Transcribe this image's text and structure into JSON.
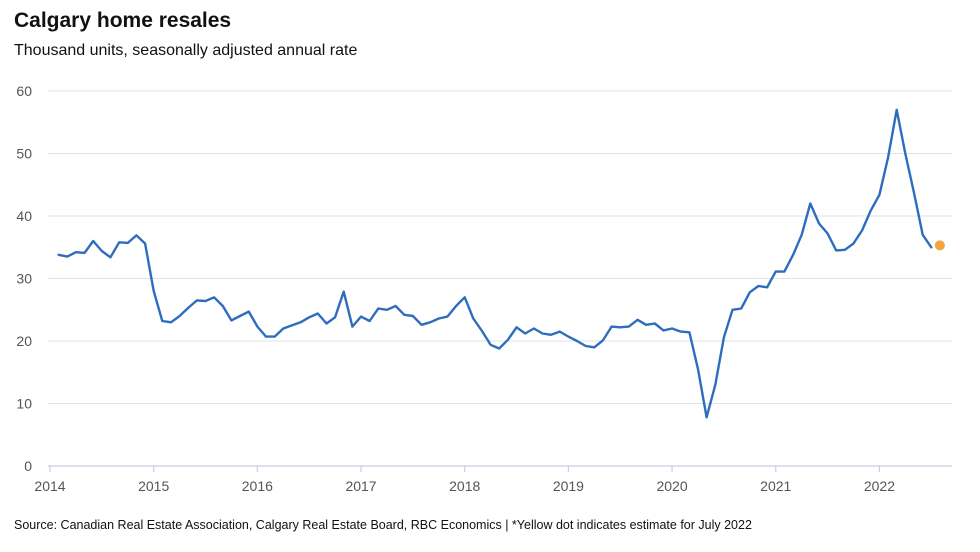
{
  "chart_data": {
    "type": "line",
    "title": "Calgary home resales",
    "subtitle": "Thousand units, seasonally adjusted annual rate",
    "source": "Source: Canadian Real Estate Association, Calgary Real Estate Board, RBC Economics | *Yellow dot indicates estimate for July 2022",
    "xlabel": "",
    "ylabel": "",
    "ylim": [
      0,
      60
    ],
    "yticks": [
      "0",
      "10",
      "20",
      "30",
      "40",
      "50",
      "60"
    ],
    "xticks": [
      "2014",
      "2015",
      "2016",
      "2017",
      "2018",
      "2019",
      "2020",
      "2021",
      "2022"
    ],
    "xlim": [
      2014.0,
      2022.7
    ],
    "grid": true,
    "line_color": "#2e6dbe",
    "estimate_color": "#f2a53a",
    "series": [
      {
        "name": "Calgary home resales",
        "x": [
          2014.083,
          2014.167,
          2014.25,
          2014.333,
          2014.417,
          2014.5,
          2014.583,
          2014.667,
          2014.75,
          2014.833,
          2014.917,
          2015.0,
          2015.083,
          2015.167,
          2015.25,
          2015.333,
          2015.417,
          2015.5,
          2015.583,
          2015.667,
          2015.75,
          2015.833,
          2015.917,
          2016.0,
          2016.083,
          2016.167,
          2016.25,
          2016.333,
          2016.417,
          2016.5,
          2016.583,
          2016.667,
          2016.75,
          2016.833,
          2016.917,
          2017.0,
          2017.083,
          2017.167,
          2017.25,
          2017.333,
          2017.417,
          2017.5,
          2017.583,
          2017.667,
          2017.75,
          2017.833,
          2017.917,
          2018.0,
          2018.083,
          2018.167,
          2018.25,
          2018.333,
          2018.417,
          2018.5,
          2018.583,
          2018.667,
          2018.75,
          2018.833,
          2018.917,
          2019.0,
          2019.083,
          2019.167,
          2019.25,
          2019.333,
          2019.417,
          2019.5,
          2019.583,
          2019.667,
          2019.75,
          2019.833,
          2019.917,
          2020.0,
          2020.083,
          2020.167,
          2020.25,
          2020.333,
          2020.417,
          2020.5,
          2020.583,
          2020.667,
          2020.75,
          2020.833,
          2020.917,
          2021.0,
          2021.083,
          2021.167,
          2021.25,
          2021.333,
          2021.417,
          2021.5,
          2021.583,
          2021.667,
          2021.75,
          2021.833,
          2021.917,
          2022.0,
          2022.083,
          2022.167,
          2022.25,
          2022.333,
          2022.417,
          2022.5
        ],
        "values": [
          33.8,
          33.5,
          34.2,
          34.1,
          36.0,
          34.4,
          33.4,
          35.8,
          35.7,
          36.9,
          35.6,
          28.0,
          23.2,
          23.0,
          24.0,
          25.3,
          26.5,
          26.4,
          27.0,
          25.6,
          23.3,
          24.0,
          24.7,
          22.3,
          20.7,
          20.7,
          22.0,
          22.5,
          23.0,
          23.8,
          24.4,
          22.8,
          23.8,
          27.9,
          22.3,
          23.9,
          23.2,
          25.2,
          25.0,
          25.6,
          24.2,
          24.0,
          22.6,
          23.0,
          23.6,
          23.9,
          25.6,
          27.0,
          23.6,
          21.6,
          19.4,
          18.8,
          20.2,
          22.2,
          21.2,
          22.0,
          21.2,
          21.0,
          21.5,
          20.7,
          20.0,
          19.2,
          19.0,
          20.1,
          22.3,
          22.2,
          22.3,
          23.4,
          22.6,
          22.8,
          21.7,
          22.0,
          21.5,
          21.4,
          15.5,
          7.8,
          13.0,
          20.6,
          25.0,
          25.2,
          27.8,
          28.8,
          28.6,
          31.1,
          31.1,
          33.8,
          37.0,
          42.0,
          38.8,
          37.2,
          34.5,
          34.6,
          35.6,
          37.7,
          40.9,
          43.4,
          49.3,
          57.0,
          50.0,
          43.7,
          37.0,
          35.0
        ]
      }
    ],
    "estimate": {
      "label": "Estimate for July 2022",
      "x": 2022.583,
      "value": 35.3
    }
  }
}
